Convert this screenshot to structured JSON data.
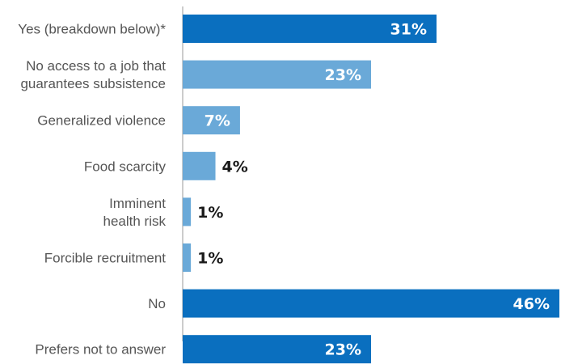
{
  "chart_data": {
    "type": "bar",
    "orientation": "horizontal",
    "categories": [
      [
        "Yes (breakdown below)*"
      ],
      [
        "No access to a job that",
        "guarantees subsistence"
      ],
      [
        "Generalized violence"
      ],
      [
        "Food scarcity"
      ],
      [
        "Imminent",
        "health risk"
      ],
      [
        "Forcible recruitment"
      ],
      [
        "No"
      ],
      [
        "Prefers not to answer"
      ]
    ],
    "values": [
      31,
      23,
      7,
      4,
      1,
      1,
      46,
      23
    ],
    "value_labels": [
      "31%",
      "23%",
      "7%",
      "4%",
      "1%",
      "1%",
      "46%",
      "23%"
    ],
    "bar_colors": [
      "#0a6fbf",
      "#6aa9d8",
      "#6aa9d8",
      "#6aa9d8",
      "#6aa9d8",
      "#6aa9d8",
      "#0a6fbf",
      "#0a6fbf"
    ],
    "colors": {
      "primary": "#0a6fbf",
      "secondary": "#6aa9d8",
      "label_inside": "#ffffff",
      "label_outside": "#1a1a1a",
      "axis": "#999999"
    },
    "xlim": [
      0,
      46
    ],
    "grid": false
  }
}
